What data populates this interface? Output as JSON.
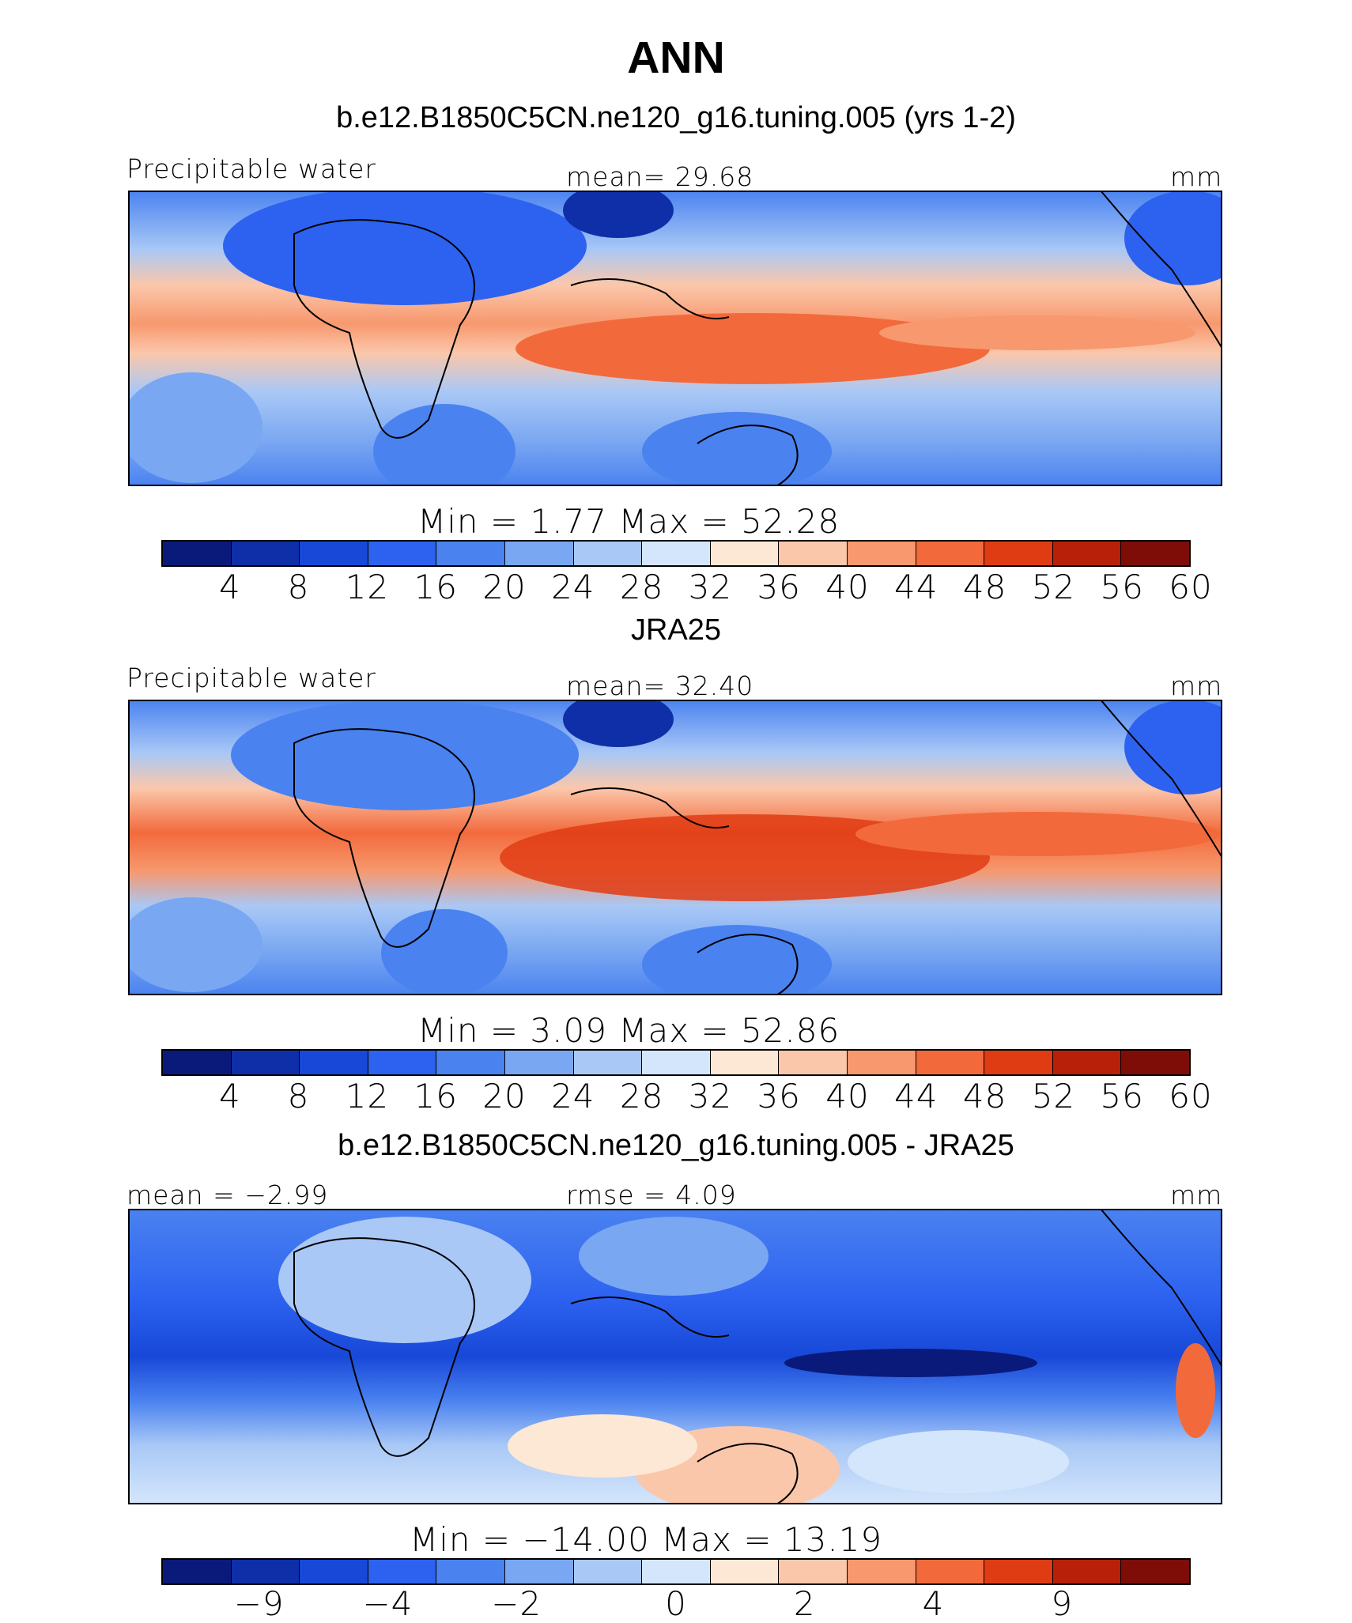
{
  "title": "ANN",
  "colors": [
    "#0a1a7a",
    "#0f2fa8",
    "#1748d8",
    "#2d62f0",
    "#4a82f0",
    "#7aa7f2",
    "#a9c8f6",
    "#d4e6fb",
    "#fde8d6",
    "#fbc7ab",
    "#f7986e",
    "#f26a3c",
    "#e03c14",
    "#b8200a",
    "#7e0d08"
  ],
  "panels": [
    {
      "title": "b.e12.B1850C5CN.ne120_g16.tuning.005 (yrs 1-2)",
      "left_label": "Precipitable water",
      "center_label": "mean=   29.68",
      "units": "mm",
      "minmax": "Min  =     1.77  Max  =    52.28",
      "ticks": [
        "4",
        "8",
        "12",
        "16",
        "20",
        "24",
        "28",
        "32",
        "36",
        "40",
        "44",
        "48",
        "52",
        "56",
        "60"
      ]
    },
    {
      "title": "JRA25",
      "left_label": "Precipitable water",
      "center_label": "mean=   32.40",
      "units": "mm",
      "minmax": "Min  =     3.09  Max  =    52.86",
      "ticks": [
        "4",
        "8",
        "12",
        "16",
        "20",
        "24",
        "28",
        "32",
        "36",
        "40",
        "44",
        "48",
        "52",
        "56",
        "60"
      ]
    },
    {
      "title": "b.e12.B1850C5CN.ne120_g16.tuning.005 - JRA25",
      "left_label": "mean  =   −2.99",
      "center_label": "rmse  =    4.09",
      "units": "mm",
      "minmax": "Min  =  −14.00  Max  =    13.19",
      "ticks": [
        "−9",
        "−4",
        "−2",
        "0",
        "2",
        "4",
        "9"
      ]
    }
  ]
}
